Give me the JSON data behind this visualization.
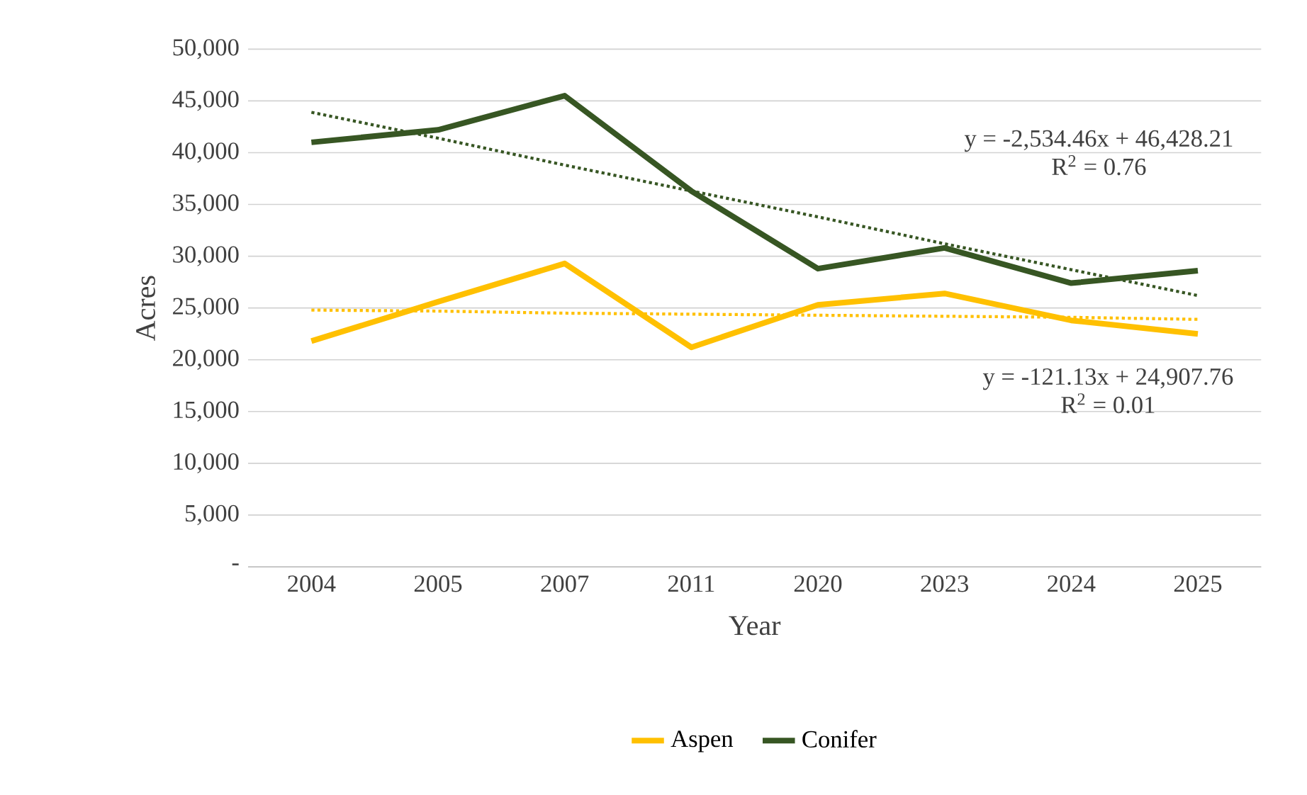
{
  "chart_data": {
    "type": "line",
    "xlabel": "Year",
    "ylabel": "Acres",
    "categories": [
      "2004",
      "2005",
      "2007",
      "2011",
      "2020",
      "2023",
      "2024",
      "2025"
    ],
    "series": [
      {
        "name": "Aspen",
        "color": "#ffc000",
        "values": [
          21800,
          25600,
          29300,
          21200,
          25300,
          26400,
          23800,
          22500
        ]
      },
      {
        "name": "Conifer",
        "color": "#375623",
        "values": [
          41000,
          42200,
          45500,
          36300,
          28800,
          30800,
          27400,
          28600
        ]
      },
      {
        "color": "#375623",
        "line_style": "dotted",
        "values": [
          43900,
          41400,
          38800,
          36300,
          33800,
          31200,
          28700,
          26200
        ]
      },
      {
        "color": "#ffc000",
        "line_style": "dotted",
        "values": [
          24800,
          24700,
          24500,
          24400,
          24300,
          24200,
          24100,
          23900
        ]
      }
    ],
    "ylim": [
      0,
      50000
    ],
    "yticks": [
      {
        "value": 0,
        "label": "-"
      },
      {
        "value": 5000,
        "label": "5,000"
      },
      {
        "value": 10000,
        "label": "10,000"
      },
      {
        "value": 15000,
        "label": "15,000"
      },
      {
        "value": 20000,
        "label": "20,000"
      },
      {
        "value": 25000,
        "label": "25,000"
      },
      {
        "value": 30000,
        "label": "30,000"
      },
      {
        "value": 35000,
        "label": "35,000"
      },
      {
        "value": 40000,
        "label": "40,000"
      },
      {
        "value": 45000,
        "label": "45,000"
      },
      {
        "value": 50000,
        "label": "50,000"
      }
    ],
    "grid": "y",
    "legend": "bottom",
    "marker": "none",
    "annotations": [
      "y = -2,534.46x + 46,428.21",
      "R$^{2}$ = 0.76",
      "y = -121.13x + 24,907.76",
      "R$^{2}$ = 0.01"
    ]
  }
}
